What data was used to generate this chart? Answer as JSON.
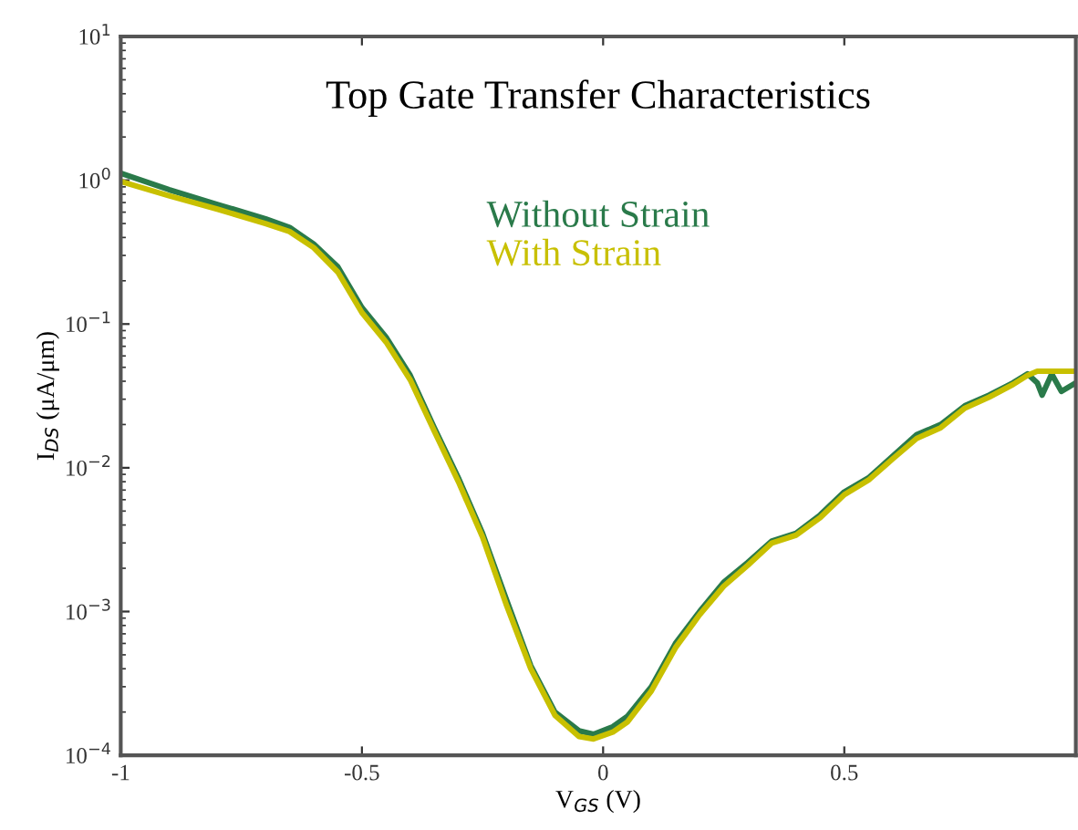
{
  "chart_data": {
    "type": "line",
    "title": "Top Gate Transfer Characteristics",
    "xlabel": "V$_{GS}$ (V)",
    "ylabel": "I$_{DS}$ (μA/μm)",
    "log": "y",
    "xlim": [
      -1,
      0.98
    ],
    "xticks": [
      -1,
      -0.5,
      0,
      0.5
    ],
    "ylim": [
      0.0001,
      10
    ],
    "yticks": [
      {
        "value": 0.0001,
        "label": "10$^{−4}$"
      },
      {
        "value": 0.001,
        "label": "10$^{−3}$"
      },
      {
        "value": 0.01,
        "label": "10$^{−2}$"
      },
      {
        "value": 0.1,
        "label": "10$^{−1}$"
      },
      {
        "value": 1,
        "label": "10$^{0}$"
      },
      {
        "value": 10,
        "label": "10$^{1}$"
      }
    ],
    "grid": false,
    "legend": "top",
    "marker": "none",
    "line_style": "solid",
    "x": [
      -1,
      -0.9,
      -0.8,
      -0.7,
      -0.65,
      -0.6,
      -0.55,
      -0.5,
      -0.45,
      -0.4,
      -0.35,
      -0.3,
      -0.25,
      -0.2,
      -0.15,
      -0.1,
      -0.05,
      -0.02,
      0.02,
      0.05,
      0.1,
      0.15,
      0.2,
      0.25,
      0.3,
      0.35,
      0.4,
      0.45,
      0.5,
      0.55,
      0.6,
      0.65,
      0.7,
      0.75,
      0.8,
      0.85,
      0.88,
      0.9,
      0.91,
      0.93,
      0.95,
      0.98
    ],
    "series": [
      {
        "name": "Without Strain",
        "color": "#2a7a4a",
        "values": [
          1.12,
          0.86,
          0.68,
          0.54,
          0.47,
          0.36,
          0.25,
          0.13,
          0.081,
          0.044,
          0.019,
          0.0085,
          0.0035,
          0.0012,
          0.00042,
          0.0002,
          0.000148,
          0.00014,
          0.000158,
          0.000186,
          0.0003,
          0.0006,
          0.001,
          0.0016,
          0.0022,
          0.0031,
          0.0035,
          0.0047,
          0.0068,
          0.0085,
          0.012,
          0.017,
          0.02,
          0.027,
          0.032,
          0.039,
          0.045,
          0.039,
          0.032,
          0.045,
          0.034,
          0.039
        ]
      },
      {
        "name": "With Strain",
        "color": "#c8c000",
        "values": [
          0.98,
          0.78,
          0.63,
          0.5,
          0.44,
          0.34,
          0.23,
          0.12,
          0.075,
          0.041,
          0.018,
          0.008,
          0.0033,
          0.0011,
          0.0004,
          0.00019,
          0.000135,
          0.00013,
          0.000145,
          0.00017,
          0.00028,
          0.00056,
          0.00095,
          0.0015,
          0.0021,
          0.003,
          0.0034,
          0.0045,
          0.0065,
          0.0082,
          0.0115,
          0.016,
          0.019,
          0.026,
          0.031,
          0.038,
          0.044,
          0.047,
          0.047,
          0.047,
          0.047,
          0.047
        ]
      }
    ]
  }
}
